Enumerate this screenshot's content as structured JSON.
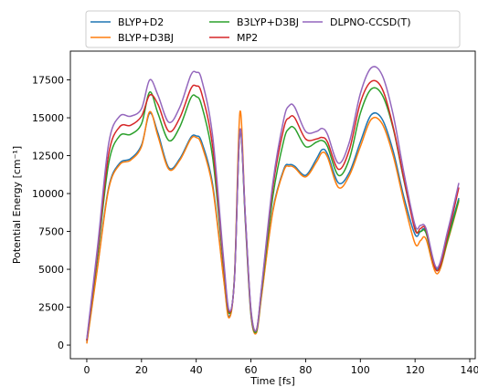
{
  "chart_data": {
    "type": "line",
    "title": "",
    "xlabel": "Time   [fs]",
    "ylabel": "Potential Energy   [cm⁻¹]",
    "xlim": [
      -6,
      142
    ],
    "ylim": [
      -900,
      19400
    ],
    "xticks": [
      0,
      20,
      40,
      60,
      80,
      100,
      120,
      140
    ],
    "yticks": [
      0,
      2500,
      5000,
      7500,
      10000,
      12500,
      15000,
      17500
    ],
    "grid": false,
    "legend_position": "top",
    "x": [
      0,
      4,
      8,
      12,
      16,
      20,
      23,
      26,
      30,
      34,
      38,
      40,
      42,
      46,
      50,
      52,
      54,
      56,
      58,
      60,
      62,
      64,
      68,
      72,
      74,
      76,
      80,
      84,
      86,
      88,
      92,
      96,
      100,
      104,
      108,
      112,
      116,
      120,
      122,
      124,
      128,
      132,
      136
    ],
    "series": [
      {
        "name": "BLYP+D2",
        "color": "#1f77b4",
        "values": [
          200,
          5300,
          10400,
          12000,
          12300,
          13200,
          15300,
          14000,
          11700,
          12300,
          13700,
          13800,
          13400,
          10600,
          4500,
          1900,
          4500,
          14200,
          8000,
          2000,
          900,
          3500,
          8900,
          11600,
          11900,
          11800,
          11200,
          12300,
          12900,
          12600,
          10700,
          11400,
          13400,
          15200,
          14900,
          12800,
          9700,
          7300,
          7500,
          7500,
          5000,
          7200,
          9700
        ]
      },
      {
        "name": "BLYP+D3BJ",
        "color": "#ff7f0e",
        "values": [
          100,
          5200,
          10300,
          11900,
          12200,
          13100,
          15400,
          13800,
          11600,
          12200,
          13600,
          13700,
          13200,
          10400,
          4400,
          1800,
          4600,
          15400,
          8200,
          2100,
          800,
          3400,
          8800,
          11500,
          11800,
          11700,
          11100,
          12100,
          12700,
          12400,
          10400,
          11200,
          13100,
          14900,
          14600,
          12500,
          9400,
          6700,
          6900,
          7000,
          4700,
          6900,
          9500
        ]
      },
      {
        "name": "B3LYP+D3BJ",
        "color": "#2ca02c",
        "values": [
          300,
          6000,
          12000,
          13800,
          13900,
          14600,
          16700,
          15300,
          13500,
          14400,
          16300,
          16400,
          15800,
          12400,
          5200,
          2100,
          4500,
          14200,
          8200,
          2200,
          900,
          3700,
          9800,
          13500,
          14300,
          14300,
          13100,
          13400,
          13500,
          13100,
          11200,
          12300,
          15300,
          16900,
          16500,
          14300,
          10800,
          7700,
          7500,
          7400,
          4900,
          7000,
          9600
        ]
      },
      {
        "name": "MP2",
        "color": "#d62728",
        "values": [
          300,
          6300,
          12600,
          14400,
          14500,
          15100,
          16500,
          15900,
          14100,
          15000,
          16900,
          17100,
          16600,
          13100,
          5400,
          2200,
          4400,
          14200,
          8300,
          2300,
          1000,
          3900,
          10400,
          14300,
          15000,
          15000,
          13600,
          13600,
          13700,
          13400,
          11600,
          12900,
          16000,
          17400,
          16900,
          14400,
          10900,
          7600,
          7700,
          7600,
          4900,
          7300,
          10400
        ]
      },
      {
        "name": "DLPNO-CCSD(T)",
        "color": "#9467bd",
        "values": [
          400,
          6600,
          13300,
          15100,
          15100,
          15600,
          17500,
          16500,
          14700,
          15700,
          17800,
          18000,
          17500,
          13800,
          5700,
          2300,
          4400,
          14200,
          8400,
          2400,
          1000,
          4000,
          10700,
          14900,
          15800,
          15700,
          14100,
          14100,
          14300,
          13900,
          12000,
          13400,
          16600,
          18300,
          17800,
          15200,
          11300,
          7900,
          7900,
          7700,
          5100,
          7600,
          10700
        ]
      }
    ]
  }
}
